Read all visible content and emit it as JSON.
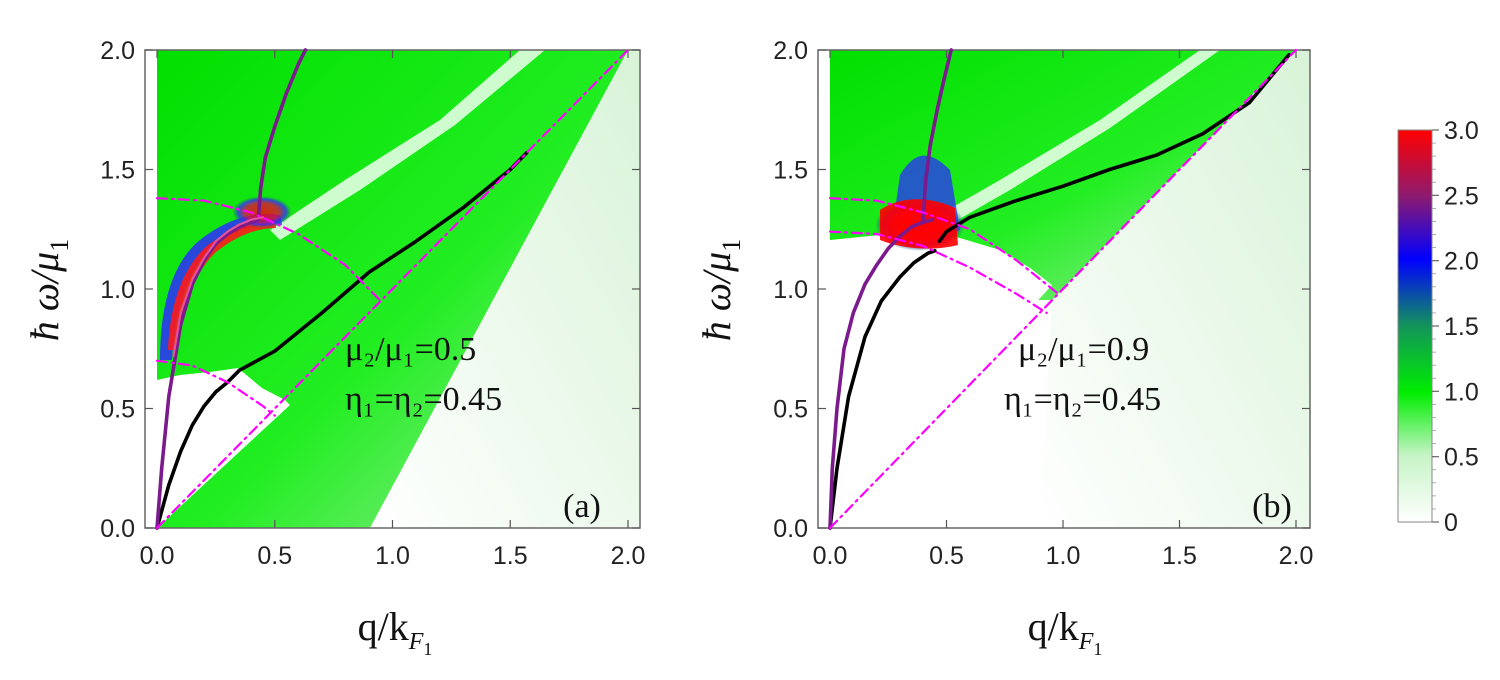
{
  "chart_data": [
    {
      "type": "heatmap",
      "panel_label": "(a)",
      "xlabel": {
        "main": "q/k",
        "sub": "F",
        "subsub": "1"
      },
      "ylabel": {
        "main": "ħ ω/μ",
        "sub": "1"
      },
      "xlim": [
        0,
        2.0
      ],
      "ylim": [
        0,
        2.0
      ],
      "xticks": [
        "0.0",
        "0.5",
        "1.0",
        "1.5",
        "2.0"
      ],
      "yticks": [
        "0.0",
        "0.5",
        "1.0",
        "1.5",
        "2.0"
      ],
      "annotation": {
        "line1": "μ₂/μ₁=0.5",
        "line2": "η₁=η₂=0.45"
      },
      "series": [
        {
          "name": "black plasmon branch",
          "color": "#000000",
          "style": "solid",
          "x": [
            0.0,
            0.05,
            0.1,
            0.15,
            0.2,
            0.25,
            0.3,
            0.35,
            0.5,
            0.7,
            0.9,
            1.1,
            1.3,
            1.5,
            1.57
          ],
          "y": [
            0.0,
            0.18,
            0.32,
            0.43,
            0.51,
            0.57,
            0.61,
            0.66,
            0.74,
            0.9,
            1.07,
            1.2,
            1.34,
            1.5,
            1.57
          ]
        },
        {
          "name": "purple upper-left branch",
          "color": "#7b1a8c",
          "style": "solid",
          "x": [
            0.0,
            0.02,
            0.05,
            0.1,
            0.15,
            0.2,
            0.25,
            0.3,
            0.35,
            0.4,
            0.43
          ],
          "y": [
            0.0,
            0.25,
            0.55,
            0.85,
            1.02,
            1.12,
            1.19,
            1.23,
            1.26,
            1.28,
            1.29
          ]
        },
        {
          "name": "purple upper branch",
          "color": "#7b1a8c",
          "style": "solid",
          "x": [
            0.43,
            0.44,
            0.46,
            0.5,
            0.55,
            0.6,
            0.63
          ],
          "y": [
            1.29,
            1.42,
            1.55,
            1.68,
            1.82,
            1.94,
            2.0
          ]
        },
        {
          "name": "pink lower dispersion",
          "color": "#e2509e",
          "style": "solid",
          "x": [
            0.07,
            0.1,
            0.15,
            0.2,
            0.25,
            0.3,
            0.35,
            0.4,
            0.45
          ],
          "y": [
            0.72,
            0.9,
            1.04,
            1.13,
            1.2,
            1.24,
            1.27,
            1.29,
            1.3
          ]
        },
        {
          "name": "magenta diagonal",
          "color": "#ff00ff",
          "style": "dashdot",
          "x": [
            0.0,
            2.0
          ],
          "y": [
            0.0,
            2.0
          ]
        },
        {
          "name": "magenta upper arc",
          "color": "#ff00ff",
          "style": "dashdot",
          "x": [
            0.0,
            0.2,
            0.4,
            0.6,
            0.8,
            0.95
          ],
          "y": [
            1.38,
            1.37,
            1.32,
            1.23,
            1.1,
            0.95
          ]
        },
        {
          "name": "magenta lower arc",
          "color": "#ff00ff",
          "style": "dashdot",
          "x": [
            0.0,
            0.15,
            0.3,
            0.45,
            0.5
          ],
          "y": [
            0.7,
            0.68,
            0.61,
            0.51,
            0.47
          ]
        }
      ]
    },
    {
      "type": "heatmap",
      "panel_label": "(b)",
      "xlabel": {
        "main": "q/k",
        "sub": "F",
        "subsub": "1"
      },
      "ylabel": {
        "main": "ħ ω/μ",
        "sub": "1"
      },
      "xlim": [
        0,
        2.0
      ],
      "ylim": [
        0,
        2.0
      ],
      "xticks": [
        "0.0",
        "0.5",
        "1.0",
        "1.5",
        "2.0"
      ],
      "yticks": [
        "0.0",
        "0.5",
        "1.0",
        "1.5",
        "2.0"
      ],
      "annotation": {
        "line1": "μ₂/μ₁=0.9",
        "line2": "η₁=η₂=0.45"
      },
      "series": [
        {
          "name": "black lower branch",
          "color": "#000000",
          "style": "solid",
          "x": [
            0.0,
            0.03,
            0.08,
            0.15,
            0.22,
            0.3,
            0.36,
            0.42,
            0.45
          ],
          "y": [
            0.0,
            0.25,
            0.55,
            0.8,
            0.95,
            1.05,
            1.11,
            1.15,
            1.16
          ]
        },
        {
          "name": "black upper branch",
          "color": "#000000",
          "style": "solid",
          "x": [
            0.47,
            0.5,
            0.55,
            0.6,
            0.8,
            1.0,
            1.2,
            1.4,
            1.6,
            1.8,
            1.97
          ],
          "y": [
            1.2,
            1.24,
            1.27,
            1.3,
            1.37,
            1.43,
            1.5,
            1.56,
            1.65,
            1.78,
            1.98
          ]
        },
        {
          "name": "purple lower branch",
          "color": "#7b1a8c",
          "style": "solid",
          "x": [
            0.0,
            0.01,
            0.03,
            0.06,
            0.1,
            0.15,
            0.2,
            0.25,
            0.3,
            0.35,
            0.4,
            0.44
          ],
          "y": [
            0.0,
            0.25,
            0.5,
            0.75,
            0.9,
            1.02,
            1.1,
            1.17,
            1.22,
            1.26,
            1.28,
            1.29
          ]
        },
        {
          "name": "purple upper branch",
          "color": "#7b1a8c",
          "style": "solid",
          "x": [
            0.4,
            0.41,
            0.43,
            0.46,
            0.49,
            0.52
          ],
          "y": [
            1.29,
            1.45,
            1.6,
            1.75,
            1.88,
            2.0
          ]
        },
        {
          "name": "magenta diagonal",
          "color": "#ff00ff",
          "style": "dashdot",
          "x": [
            0.0,
            2.0
          ],
          "y": [
            0.0,
            2.0
          ]
        },
        {
          "name": "magenta upper arc",
          "color": "#ff00ff",
          "style": "dashdot",
          "x": [
            0.0,
            0.2,
            0.4,
            0.6,
            0.8,
            0.98
          ],
          "y": [
            1.38,
            1.37,
            1.32,
            1.25,
            1.12,
            0.98
          ]
        },
        {
          "name": "magenta lower arc",
          "color": "#ff00ff",
          "style": "dashdot",
          "x": [
            0.0,
            0.2,
            0.4,
            0.6,
            0.8,
            0.93
          ],
          "y": [
            1.24,
            1.23,
            1.18,
            1.09,
            0.98,
            0.9
          ]
        }
      ]
    }
  ],
  "colorbar": {
    "ticks": [
      "0",
      "0.5",
      "1.0",
      "1.5",
      "2.0",
      "2.5",
      "3.0"
    ],
    "values": [
      0,
      0.5,
      1.0,
      1.5,
      2.0,
      2.5,
      3.0
    ],
    "range": [
      0,
      3.0
    ],
    "colors": [
      "#ffffff",
      "#b8f0b8",
      "#00ff00",
      "#1a8c4a",
      "#0000ff",
      "#8a1a6a",
      "#ff0000"
    ]
  }
}
